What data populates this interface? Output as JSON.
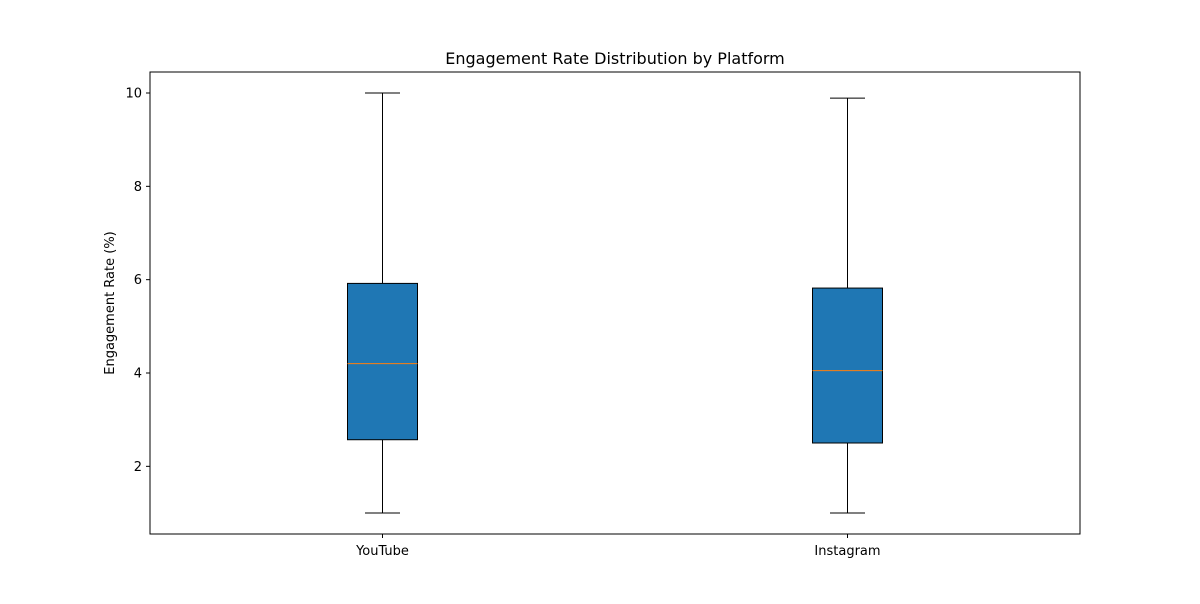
{
  "chart_data": {
    "type": "box",
    "title": "Engagement Rate Distribution by Platform",
    "xlabel": "",
    "ylabel": "Engagement Rate (%)",
    "ylim": [
      0.55,
      10.45
    ],
    "yticks": [
      2,
      4,
      6,
      8,
      10
    ],
    "ytick_labels": [
      "2",
      "4",
      "6",
      "8",
      "10"
    ],
    "categories": [
      "YouTube",
      "Instagram"
    ],
    "boxes": [
      {
        "category": "YouTube",
        "whisker_low": 1.0,
        "q1": 2.57,
        "median": 4.2,
        "q3": 5.92,
        "whisker_high": 10.0
      },
      {
        "category": "Instagram",
        "whisker_low": 1.0,
        "q1": 2.5,
        "median": 4.05,
        "q3": 5.82,
        "whisker_high": 9.89
      }
    ],
    "box_color": "#1f77b4",
    "median_color": "#ff7f0e",
    "grid": false,
    "legend": "none"
  }
}
